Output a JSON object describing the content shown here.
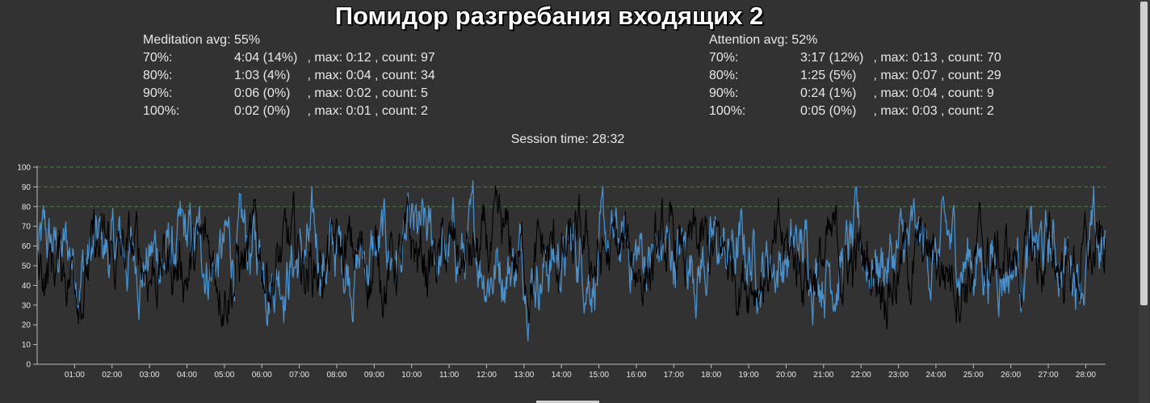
{
  "title": "Помидор разгребания входящих 2",
  "meditation": {
    "avg_label": "Meditation avg: 55%",
    "rows": [
      {
        "level": "70%:",
        "time": "4:04 (14%)",
        "rest": " , max: 0:12 , count: 97"
      },
      {
        "level": "80%:",
        "time": "1:03 (4%)",
        "rest": " , max: 0:04 , count: 34"
      },
      {
        "level": "90%:",
        "time": "0:06 (0%)",
        "rest": " , max: 0:02 , count: 5"
      },
      {
        "level": "100%:",
        "time": "0:02 (0%)",
        "rest": " , max: 0:01 , count: 2"
      }
    ]
  },
  "attention": {
    "avg_label": "Attention avg: 52%",
    "rows": [
      {
        "level": "70%:",
        "time": "3:17 (12%)",
        "rest": " , max: 0:13 , count: 70"
      },
      {
        "level": "80%:",
        "time": "1:25 (5%)",
        "rest": " , max: 0:07 , count: 29"
      },
      {
        "level": "90%:",
        "time": "0:24 (1%)",
        "rest": " , max: 0:04 , count: 9"
      },
      {
        "level": "100%:",
        "time": "0:05 (0%)",
        "rest": " , max: 0:03 , count: 2"
      }
    ]
  },
  "session_time": "Session time: 28:32",
  "chart_data": {
    "type": "line",
    "title": "",
    "xlabel": "",
    "ylabel": "",
    "xlim": [
      0,
      28.53
    ],
    "ylim": [
      0,
      100
    ],
    "x_ticks": [
      "01:00",
      "02:00",
      "03:00",
      "04:00",
      "05:00",
      "06:00",
      "07:00",
      "08:00",
      "09:00",
      "10:00",
      "11:00",
      "12:00",
      "13:00",
      "14:00",
      "15:00",
      "16:00",
      "17:00",
      "18:00",
      "19:00",
      "20:00",
      "21:00",
      "22:00",
      "23:00",
      "24:00",
      "25:00",
      "26:00",
      "27:00",
      "28:00"
    ],
    "y_ticks": [
      "0",
      "10",
      "20",
      "30",
      "40",
      "50",
      "60",
      "70",
      "80",
      "90",
      "100"
    ],
    "threshold_lines": [
      80,
      90,
      100
    ],
    "threshold_color": "#2e8b2e",
    "series": [
      {
        "color": "#4a8fc8",
        "avg": 55,
        "samples": 1712
      },
      {
        "color": "#000000",
        "avg": 52,
        "samples": 1712
      }
    ]
  }
}
